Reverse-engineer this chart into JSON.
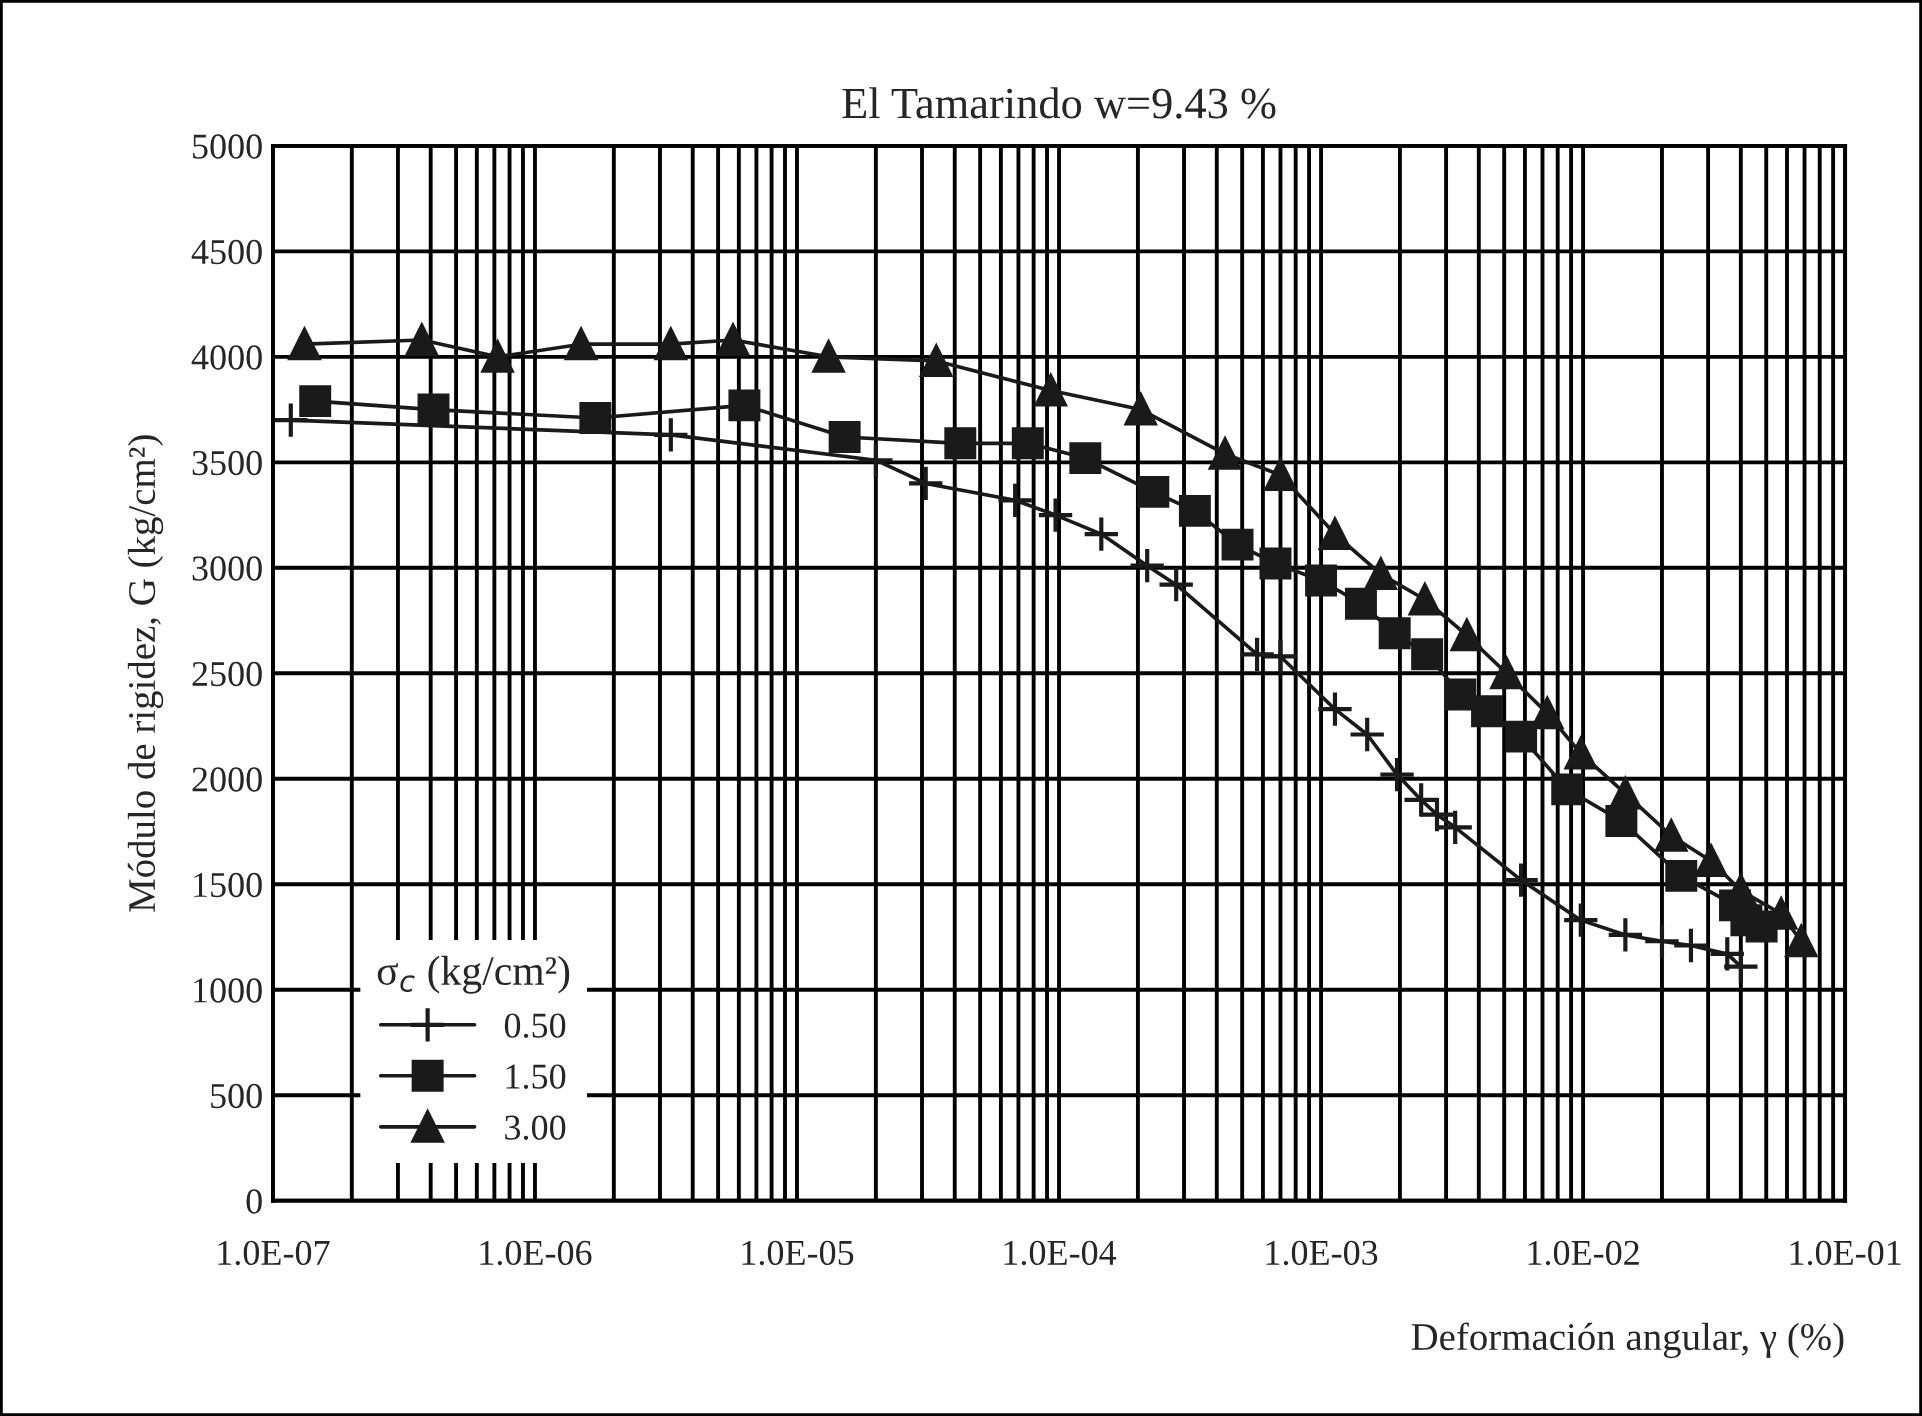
{
  "chart_data": {
    "type": "line",
    "title": "El Tamarindo w=9.43 %",
    "xlabel": "Deformación angular, γ (%)",
    "ylabel": "Módulo de rigidez, G (kg/cm²)",
    "legend_title": "σ$_{c}$ (kg/cm²)",
    "legend": "bottom left",
    "log": "x",
    "grid": true,
    "xlim": [
      1e-07,
      0.1
    ],
    "xticks": [
      {
        "value": 1e-07,
        "label": "1.0E-07"
      },
      {
        "value": 1e-06,
        "label": "1.0E-06"
      },
      {
        "value": 1e-05,
        "label": "1.0E-05"
      },
      {
        "value": 0.0001,
        "label": "1.0E-04"
      },
      {
        "value": 0.001,
        "label": "1.0E-03"
      },
      {
        "value": 0.01,
        "label": "1.0E-02"
      },
      {
        "value": 0.1,
        "label": "1.0E-01"
      }
    ],
    "ylim": [
      0,
      5000
    ],
    "yticks": [
      0,
      500,
      1000,
      1500,
      2000,
      2500,
      3000,
      3500,
      4000,
      4500,
      5000
    ],
    "series": [
      {
        "name": "0.50",
        "color": "#1a1a1a",
        "marker": "cross",
        "x": [
          1.17e-07,
          3.3e-06,
          2e-05,
          3.1e-05,
          6.8e-05,
          9.7e-05,
          0.000145,
          0.000217,
          0.00028,
          0.00057,
          0.0007,
          0.00113,
          0.0015,
          0.00195,
          0.00241,
          0.00277,
          0.00325,
          0.0058,
          0.0098,
          0.0145,
          0.02,
          0.0258,
          0.0355,
          0.04
        ],
        "values": [
          3700,
          3630,
          3510,
          3400,
          3320,
          3250,
          3160,
          3010,
          2920,
          2590,
          2580,
          2330,
          2210,
          2020,
          1900,
          1830,
          1770,
          1520,
          1330,
          1260,
          1230,
          1210,
          1170,
          1110
        ]
      },
      {
        "name": "1.50",
        "color": "#1a1a1a",
        "marker": "square",
        "x": [
          1.45e-07,
          4.1e-07,
          1.7e-06,
          6.3e-06,
          1.52e-05,
          4.2e-05,
          7.6e-05,
          0.000126,
          0.000229,
          0.00033,
          0.00048,
          0.00067,
          0.001,
          0.00142,
          0.00191,
          0.00254,
          0.0034,
          0.0043,
          0.0058,
          0.0087,
          0.014,
          0.0237,
          0.038,
          0.042,
          0.048
        ],
        "values": [
          3790,
          3750,
          3710,
          3770,
          3620,
          3590,
          3590,
          3520,
          3360,
          3270,
          3110,
          3020,
          2940,
          2830,
          2690,
          2590,
          2400,
          2320,
          2200,
          1950,
          1800,
          1540,
          1400,
          1330,
          1300
        ]
      },
      {
        "name": "3.00",
        "color": "#1a1a1a",
        "marker": "triangle",
        "x": [
          1.32e-07,
          3.7e-07,
          7.2e-07,
          1.5e-06,
          3.3e-06,
          5.7e-06,
          1.32e-05,
          3.4e-05,
          9.3e-05,
          0.000205,
          0.00043,
          0.0007,
          0.00113,
          0.00169,
          0.00249,
          0.0036,
          0.0051,
          0.0073,
          0.0098,
          0.0145,
          0.0217,
          0.0308,
          0.04,
          0.057,
          0.068
        ],
        "values": [
          4060,
          4080,
          4000,
          4060,
          4060,
          4080,
          4000,
          3980,
          3840,
          3750,
          3540,
          3440,
          3160,
          2970,
          2850,
          2680,
          2500,
          2310,
          2120,
          1930,
          1730,
          1610,
          1470,
          1360,
          1230
        ]
      }
    ]
  }
}
